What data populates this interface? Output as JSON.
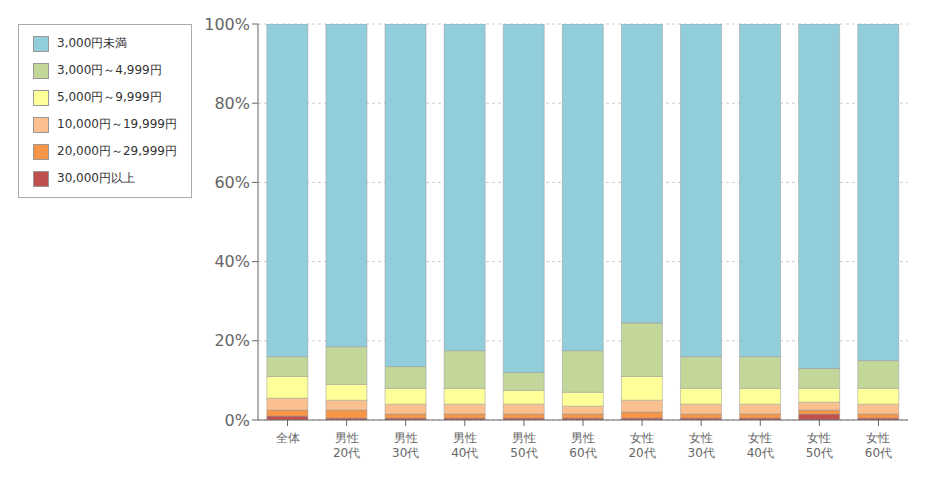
{
  "chart_data": {
    "type": "bar",
    "stacked": true,
    "categories": [
      "全体",
      "男性\n20代",
      "男性\n30代",
      "男性\n40代",
      "男性\n50代",
      "男性\n60代",
      "女性\n20代",
      "女性\n30代",
      "女性\n40代",
      "女性\n50代",
      "女性\n60代"
    ],
    "series": [
      {
        "name": "30,000円以上",
        "color": "#C0504D",
        "values": [
          1.0,
          0.5,
          0.5,
          0.5,
          0.5,
          0.5,
          0.5,
          0.5,
          0.5,
          1.5,
          0.5
        ]
      },
      {
        "name": "20,000円～29,999円",
        "color": "#F79646",
        "values": [
          1.5,
          2.0,
          1.0,
          1.0,
          1.0,
          1.0,
          1.5,
          1.0,
          1.0,
          1.0,
          1.0
        ]
      },
      {
        "name": "10,000円～19,999円",
        "color": "#FAC090",
        "values": [
          3.0,
          2.5,
          2.5,
          2.5,
          2.5,
          2.0,
          3.0,
          2.5,
          2.5,
          2.0,
          2.5
        ]
      },
      {
        "name": "5,000円～9,999円",
        "color": "#FFFF99",
        "values": [
          5.5,
          4.0,
          4.0,
          4.0,
          3.5,
          3.5,
          6.0,
          4.0,
          4.0,
          3.5,
          4.0
        ]
      },
      {
        "name": "3,000円～4,999円",
        "color": "#C4D79B",
        "values": [
          5.0,
          9.5,
          5.5,
          9.5,
          4.5,
          10.5,
          13.5,
          8.0,
          8.0,
          5.0,
          7.0
        ]
      },
      {
        "name": "3,000円未満",
        "color": "#92CDDC",
        "values": [
          84.0,
          81.5,
          86.5,
          82.5,
          88.0,
          82.5,
          75.5,
          84.0,
          84.0,
          87.0,
          85.0
        ]
      }
    ],
    "ylim": [
      0,
      100
    ],
    "yticks": [
      {
        "value": 0,
        "label": "0%"
      },
      {
        "value": 20,
        "label": "20%"
      },
      {
        "value": 40,
        "label": "40%"
      },
      {
        "value": 60,
        "label": "60%"
      },
      {
        "value": 80,
        "label": "80%"
      },
      {
        "value": 100,
        "label": "100%"
      }
    ],
    "grid": true,
    "legend": "left"
  }
}
